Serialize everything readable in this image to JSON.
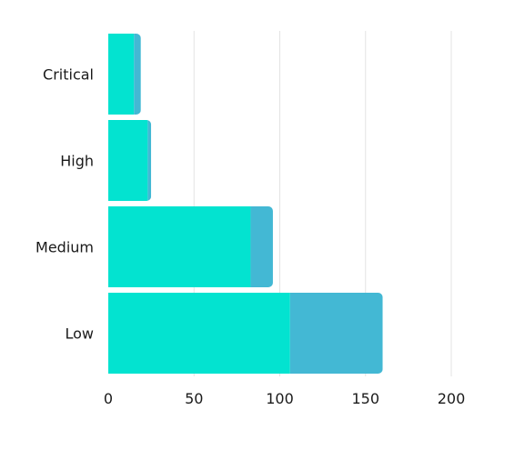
{
  "chart_data": {
    "type": "bar",
    "orientation": "horizontal",
    "stacked": true,
    "categories": [
      "Critical",
      "High",
      "Medium",
      "Low"
    ],
    "series": [
      {
        "values": [
          15,
          23,
          83,
          106
        ],
        "color": "#03e3d0"
      },
      {
        "values": [
          4,
          2,
          13,
          54
        ],
        "color": "#43b8d4"
      }
    ],
    "xlim": [
      0,
      200
    ],
    "xticks": [
      0,
      50,
      100,
      150,
      200
    ],
    "title": "",
    "xlabel": "",
    "ylabel": "",
    "grid": "vertical",
    "legend": "none"
  }
}
